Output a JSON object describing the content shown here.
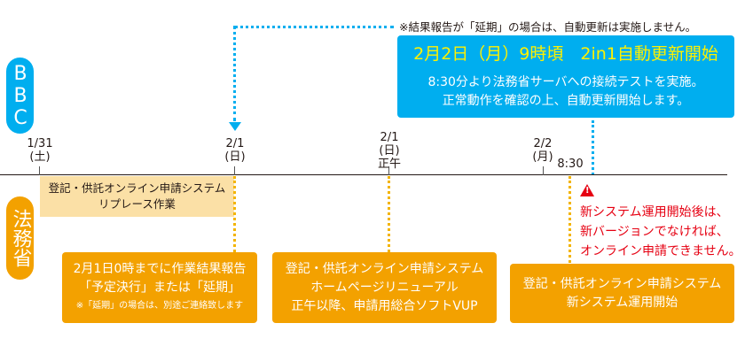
{
  "bbc_label": "BBC",
  "moj_label": "法務省",
  "colors": {
    "bbc": "#00aeef",
    "moj": "#f3a100",
    "replace": "#fbe0a6",
    "warning": "#e60012",
    "highlight": "#fff100"
  },
  "note_top": "※結果報告が「延期」の場合は、自動更新は実施しません。",
  "bbc_box": {
    "title": "2月2日（月）9時頃　2in1自動更新開始",
    "line1": "8:30分より法務省サーバへの接続テストを実施。",
    "line2": "正常動作を確認の上、自動更新開始します。"
  },
  "timeline": {
    "d131": {
      "date": "1/31",
      "day": "(土)"
    },
    "d21": {
      "date": "2/1",
      "day": "(日)"
    },
    "d21noon": {
      "date": "2/1",
      "day": "(日)",
      "time": "正午"
    },
    "d22": {
      "date": "2/2",
      "day": "(月)"
    },
    "t830": "8:30"
  },
  "replace_box": {
    "line1": "登記・供託オンライン申請システム",
    "line2": "リプレース作業"
  },
  "box1": {
    "line1": "2月1日0時までに作業結果報告",
    "line2": "「予定決行」または「延期」",
    "note": "※「延期」の場合は、別途ご連絡致します"
  },
  "box2": {
    "line1": "登記・供託オンライン申請システム",
    "line2": "ホームページリニューアル",
    "line3": "正午以降、申請用総合ソフトVUP"
  },
  "box3": {
    "line1": "登記・供託オンライン申請システム",
    "line2": "新システム運用開始"
  },
  "warning": {
    "icon": "warning-icon",
    "line1": "新システム運用開始後は、",
    "line2": "新バージョンでなければ、",
    "line3": "オンライン申請できません。"
  }
}
